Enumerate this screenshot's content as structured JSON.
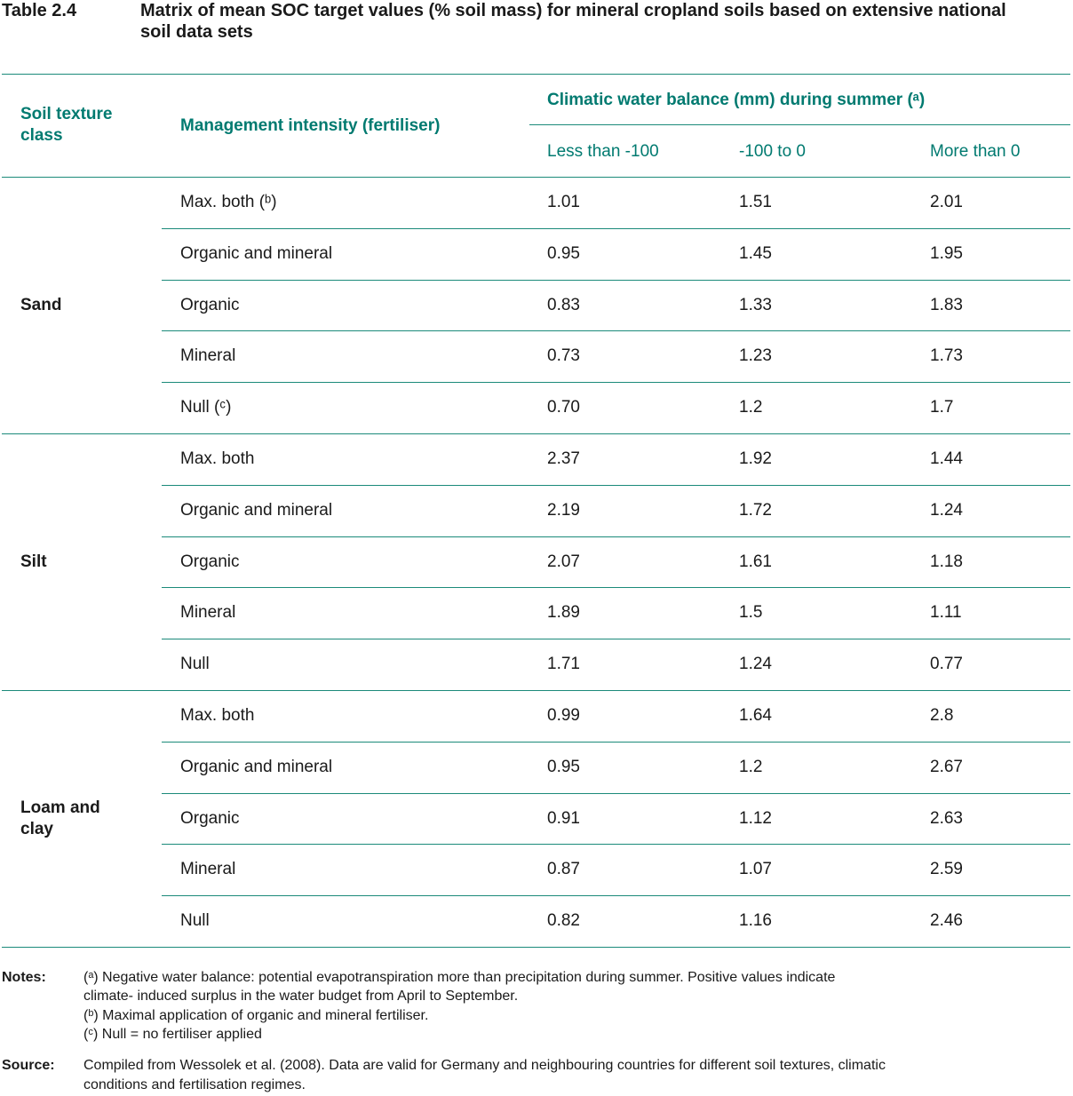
{
  "table": {
    "label": "Table 2.4",
    "title": "Matrix of mean SOC target values (% soil mass) for mineral cropland soils based on extensive national soil data sets"
  },
  "header": {
    "soil_texture": "Soil texture class",
    "management": "Management intensity (fertiliser)",
    "climatic": "Climatic water balance (mm) during summer (ᵃ)",
    "col1": "Less than -100",
    "col2": "-100 to 0",
    "col3": "More than 0"
  },
  "groups": [
    {
      "name": "Sand",
      "rows": [
        {
          "label": "Max. both (ᵇ)",
          "v1": "1.01",
          "v2": "1.51",
          "v3": "2.01"
        },
        {
          "label": "Organic and mineral",
          "v1": "0.95",
          "v2": "1.45",
          "v3": "1.95"
        },
        {
          "label": "Organic",
          "v1": "0.83",
          "v2": "1.33",
          "v3": "1.83"
        },
        {
          "label": "Mineral",
          "v1": "0.73",
          "v2": "1.23",
          "v3": "1.73"
        },
        {
          "label": "Null (ᶜ)",
          "v1": "0.70",
          "v2": "1.2",
          "v3": "1.7"
        }
      ]
    },
    {
      "name": "Silt",
      "rows": [
        {
          "label": "Max. both",
          "v1": "2.37",
          "v2": "1.92",
          "v3": "1.44"
        },
        {
          "label": "Organic and mineral",
          "v1": "2.19",
          "v2": "1.72",
          "v3": "1.24"
        },
        {
          "label": "Organic",
          "v1": "2.07",
          "v2": "1.61",
          "v3": "1.18"
        },
        {
          "label": "Mineral",
          "v1": "1.89",
          "v2": "1.5",
          "v3": "1.11"
        },
        {
          "label": "Null",
          "v1": "1.71",
          "v2": "1.24",
          "v3": "0.77"
        }
      ]
    },
    {
      "name": "Loam and clay",
      "rows": [
        {
          "label": "Max. both",
          "v1": "0.99",
          "v2": "1.64",
          "v3": "2.8"
        },
        {
          "label": "Organic and mineral",
          "v1": "0.95",
          "v2": "1.2",
          "v3": "2.67"
        },
        {
          "label": "Organic",
          "v1": "0.91",
          "v2": "1.12",
          "v3": "2.63"
        },
        {
          "label": "Mineral",
          "v1": "0.87",
          "v2": "1.07",
          "v3": "2.59"
        },
        {
          "label": "Null",
          "v1": "0.82",
          "v2": "1.16",
          "v3": "2.46"
        }
      ]
    }
  ],
  "notes": {
    "label": "Notes:",
    "a_line1": "(ᵃ) Negative water balance: potential evapotranspiration more than precipitation during summer. Positive values indicate",
    "a_line2": "climate- induced surplus in the water budget from April to September.",
    "b": "(ᵇ) Maximal application of organic and mineral fertiliser.",
    "c": "(ᶜ) Null = no fertiliser applied"
  },
  "source": {
    "label": "Source:",
    "line1": "Compiled from Wessolek et al. (2008). Data are valid for Germany and neighbouring countries for different soil textures, climatic",
    "line2": "conditions and fertilisation regimes."
  },
  "colors": {
    "accent": "#007a70",
    "rule": "#1b8a7a"
  }
}
